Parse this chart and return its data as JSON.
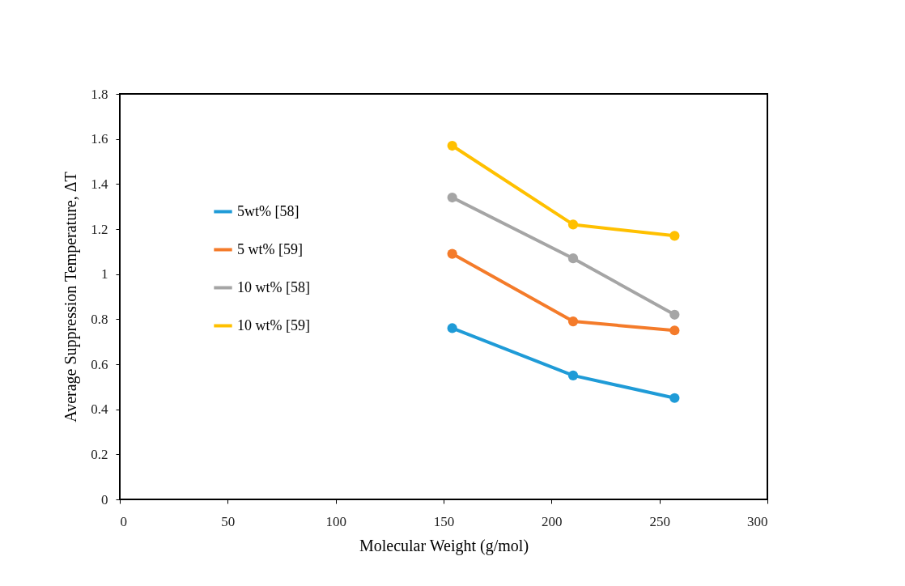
{
  "chart_data": {
    "type": "line",
    "xlabel": "Molecular Weight (g/mol)",
    "ylabel": "Average Suppression Temperature, ΔT",
    "x": [
      154,
      210,
      257
    ],
    "series": [
      {
        "name": "5wt% [58]",
        "color": "#1f9bd7",
        "values": [
          0.76,
          0.55,
          0.45
        ]
      },
      {
        "name": "5 wt% [59]",
        "color": "#f47b2a",
        "values": [
          1.09,
          0.79,
          0.75
        ]
      },
      {
        "name": "10 wt% [58]",
        "color": "#a5a5a5",
        "values": [
          1.34,
          1.07,
          0.82
        ]
      },
      {
        "name": "10 wt% [59]",
        "color": "#ffc000",
        "values": [
          1.57,
          1.22,
          1.17
        ]
      }
    ],
    "xlim": [
      0,
      300
    ],
    "xticks": [
      0,
      50,
      100,
      150,
      200,
      250,
      300
    ],
    "ylim": [
      0,
      1.8
    ],
    "yticks": [
      0,
      0.2,
      0.4,
      0.6,
      0.8,
      1,
      1.2,
      1.4,
      1.6,
      1.8
    ],
    "grid": false,
    "legend": "left",
    "marker": "circle",
    "line_style": "solid"
  }
}
